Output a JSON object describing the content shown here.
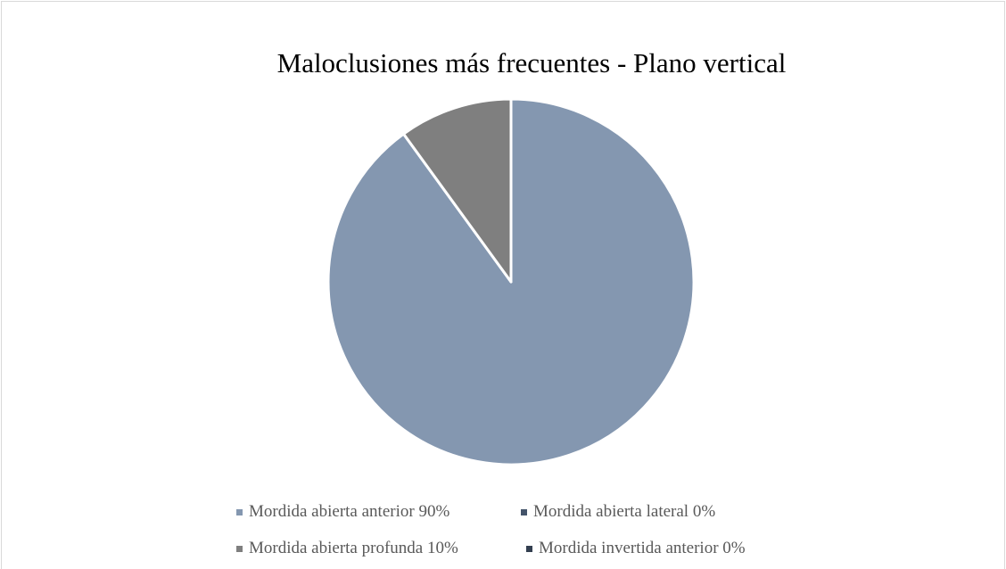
{
  "chart_data": {
    "type": "pie",
    "title": "Maloclusiones más frecuentes -  Plano vertical",
    "categories": [
      "Mordida abierta anterior",
      "Mordida abierta lateral",
      "Mordida abierta profunda",
      "Mordida invertida anterior"
    ],
    "values": [
      90,
      0,
      10,
      0
    ],
    "value_labels": [
      "90%",
      "0%",
      "10%",
      "0%"
    ],
    "colors": [
      "#8497b0",
      "#44546a",
      "#7f7f7f",
      "#333f50"
    ],
    "legend": "bottom"
  }
}
